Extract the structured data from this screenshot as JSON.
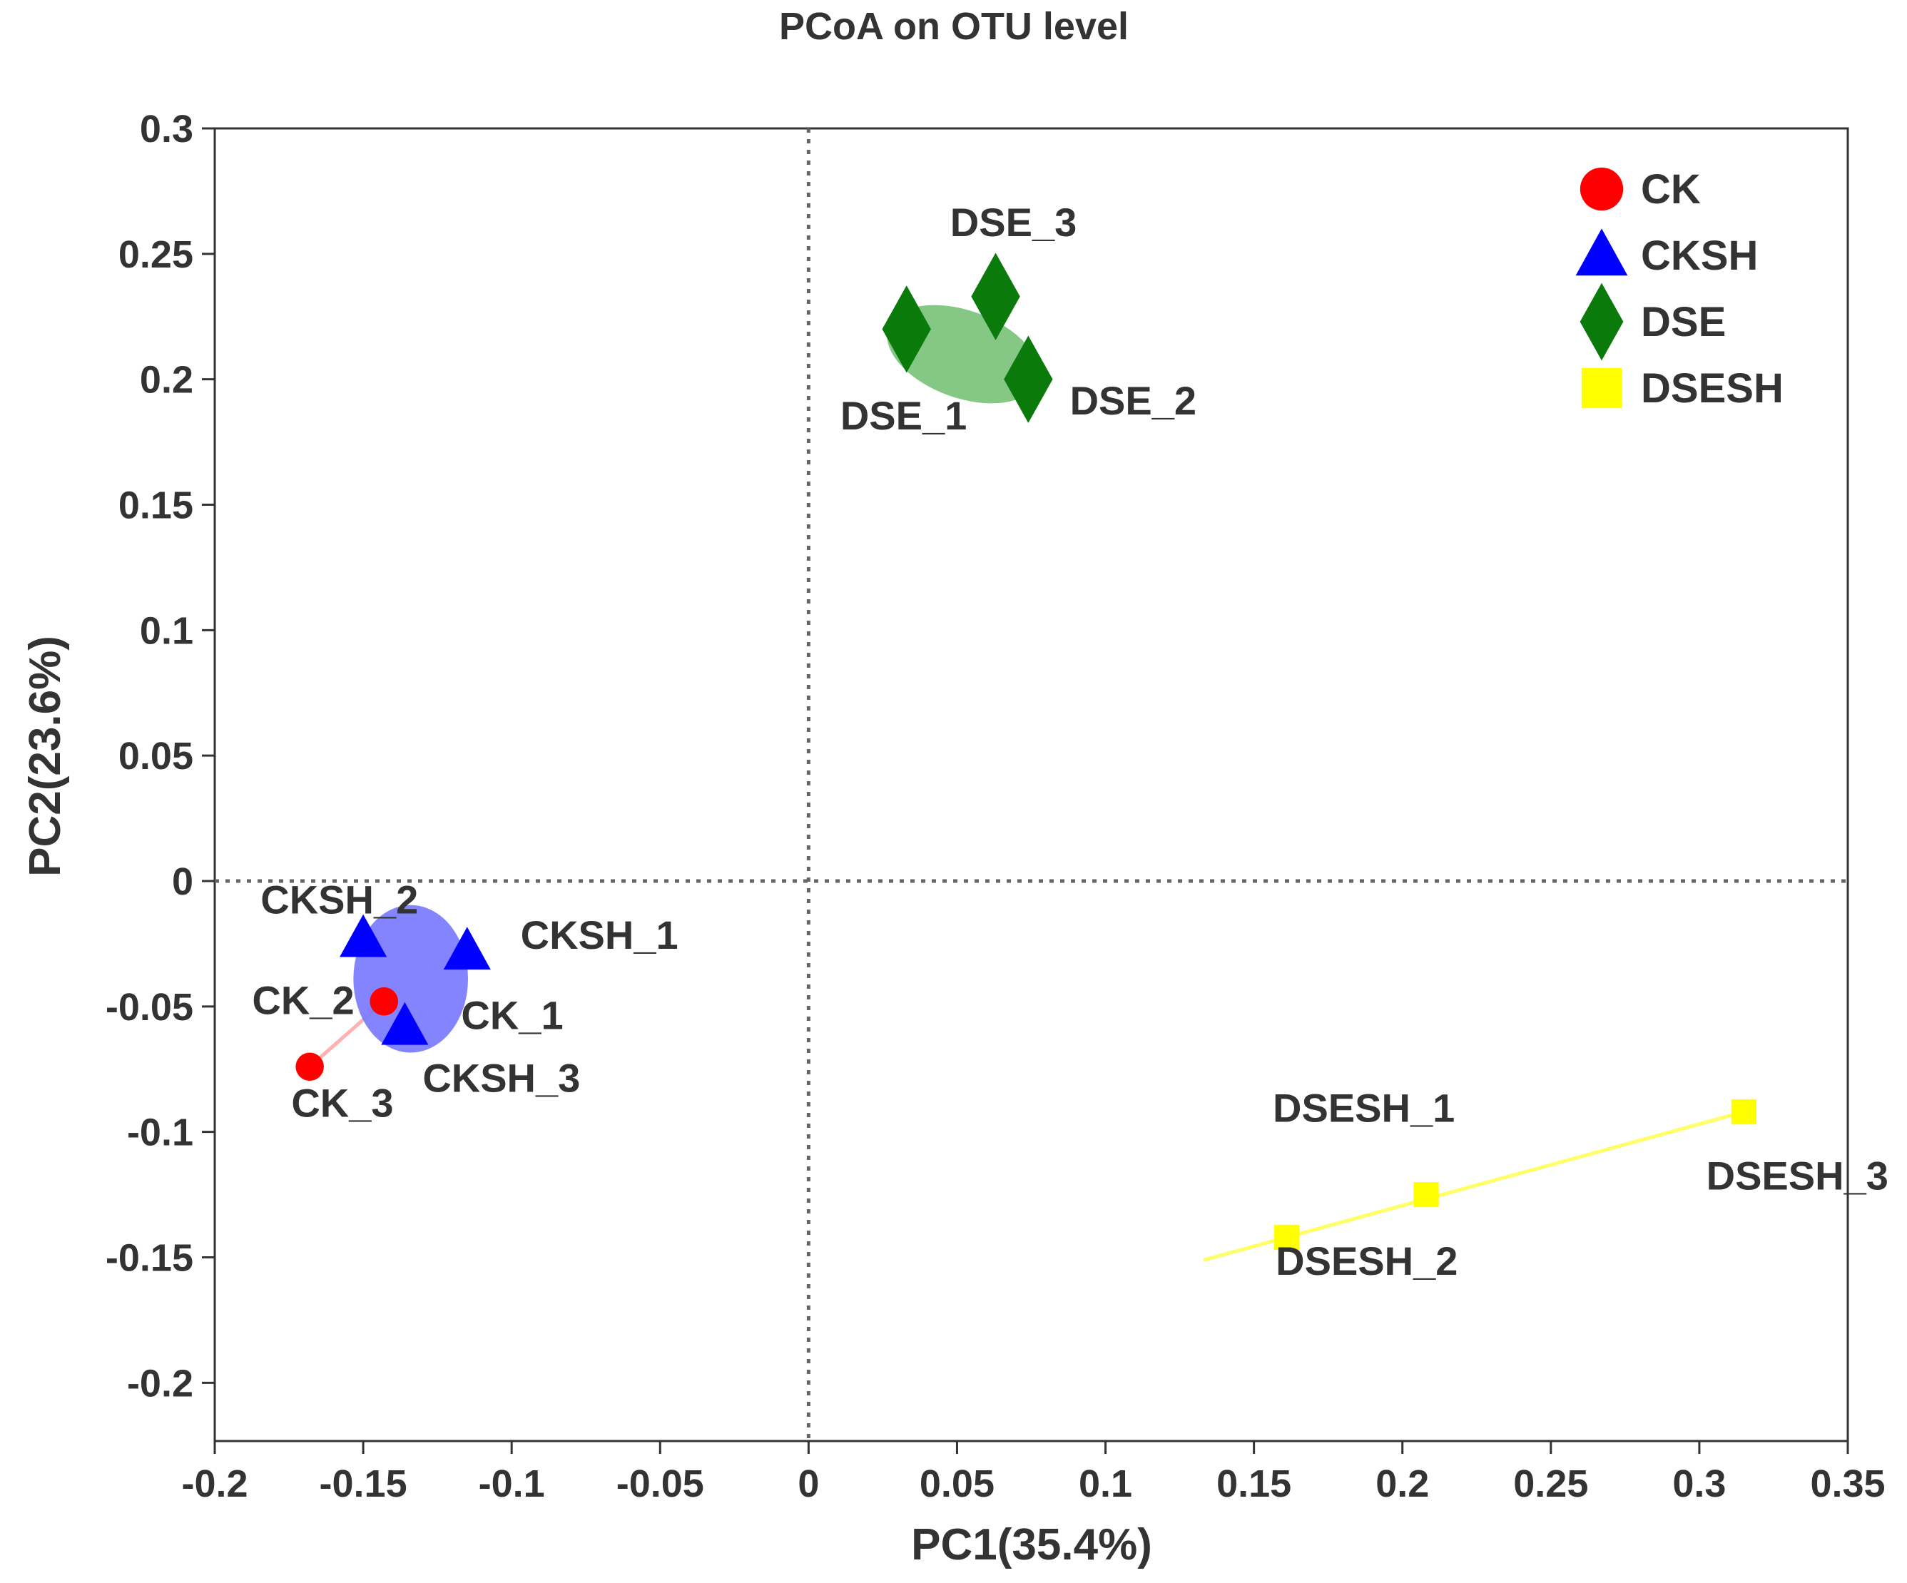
{
  "chart_data": {
    "type": "scatter",
    "title": "PCoA on OTU level",
    "xlabel": "PC1(35.4%)",
    "ylabel": "PC2(23.6%)",
    "xlim": [
      -0.2,
      0.35
    ],
    "ylim": [
      -0.23,
      0.3
    ],
    "xticks": [
      -0.2,
      -0.15,
      -0.1,
      -0.05,
      0,
      0.05,
      0.1,
      0.15,
      0.2,
      0.25,
      0.3,
      0.35
    ],
    "xtick_labels": [
      "-0.2",
      "-0.15",
      "-0.1",
      "-0.05",
      "0",
      "0.05",
      "0.1",
      "0.15",
      "0.2",
      "0.25",
      "0.3",
      "0.35"
    ],
    "yticks": [
      0.3,
      0.25,
      0.2,
      0.15,
      0.1,
      0.05,
      0,
      -0.05,
      -0.1,
      -0.15,
      -0.2
    ],
    "ytick_labels": [
      "0.3",
      "0.25",
      "0.2",
      "0.15",
      "0.1",
      "0.05",
      "0",
      "-0.05",
      "-0.1",
      "-0.15",
      "-0.2"
    ],
    "grid": false,
    "reference_lines": {
      "x": 0,
      "y": 0,
      "style": "dotted"
    },
    "legend_position": "top-right",
    "series": [
      {
        "name": "CK",
        "color": "#ff0000",
        "marker": "circle",
        "points": [
          {
            "label": "CK_1",
            "x": -0.143,
            "y": -0.048
          },
          {
            "label": "CK_2",
            "x": -0.143,
            "y": -0.048
          },
          {
            "label": "CK_3",
            "x": -0.168,
            "y": -0.074
          }
        ],
        "hull": {
          "shape": "line",
          "color": "#ffb0b0"
        }
      },
      {
        "name": "CKSH",
        "color": "#0000ff",
        "marker": "triangle",
        "points": [
          {
            "label": "CKSH_1",
            "x": -0.115,
            "y": -0.028
          },
          {
            "label": "CKSH_2",
            "x": -0.15,
            "y": -0.023
          },
          {
            "label": "CKSH_3",
            "x": -0.136,
            "y": -0.058
          }
        ],
        "ellipse": {
          "cx": -0.134,
          "cy": -0.039,
          "rx": 0.0193,
          "ry": 0.0294,
          "angle": 0,
          "color": "#7a7aff"
        }
      },
      {
        "name": "DSE",
        "color": "#0a7a0a",
        "marker": "diamond",
        "points": [
          {
            "label": "DSE_1",
            "x": 0.033,
            "y": 0.22
          },
          {
            "label": "DSE_2",
            "x": 0.074,
            "y": 0.2
          },
          {
            "label": "DSE_3",
            "x": 0.063,
            "y": 0.233
          }
        ],
        "ellipse": {
          "cx": 0.052,
          "cy": 0.21,
          "rx": 0.0267,
          "ry": 0.0174,
          "angle": 20,
          "color": "#7bc27b"
        }
      },
      {
        "name": "DSESH",
        "color": "#ffff00",
        "marker": "square",
        "points": [
          {
            "label": "DSESH_1",
            "x": 0.208,
            "y": -0.125
          },
          {
            "label": "DSESH_2",
            "x": 0.161,
            "y": -0.142
          },
          {
            "label": "DSESH_3",
            "x": 0.315,
            "y": -0.092
          }
        ],
        "hull": {
          "shape": "line",
          "color": "#ffff66",
          "x_from": 0.133,
          "x_to": 0.315
        }
      }
    ],
    "point_label_offsets": {
      "CK_1": "right-below",
      "CK_2": "left",
      "CK_3": "below",
      "CKSH_1": "right-above",
      "CKSH_2": "above-left",
      "CKSH_3": "below-right",
      "DSE_1": "below-left",
      "DSE_2": "right-below",
      "DSE_3": "above",
      "DSESH_1": "above-left",
      "DSESH_2": "below",
      "DSESH_3": "right-below"
    }
  }
}
